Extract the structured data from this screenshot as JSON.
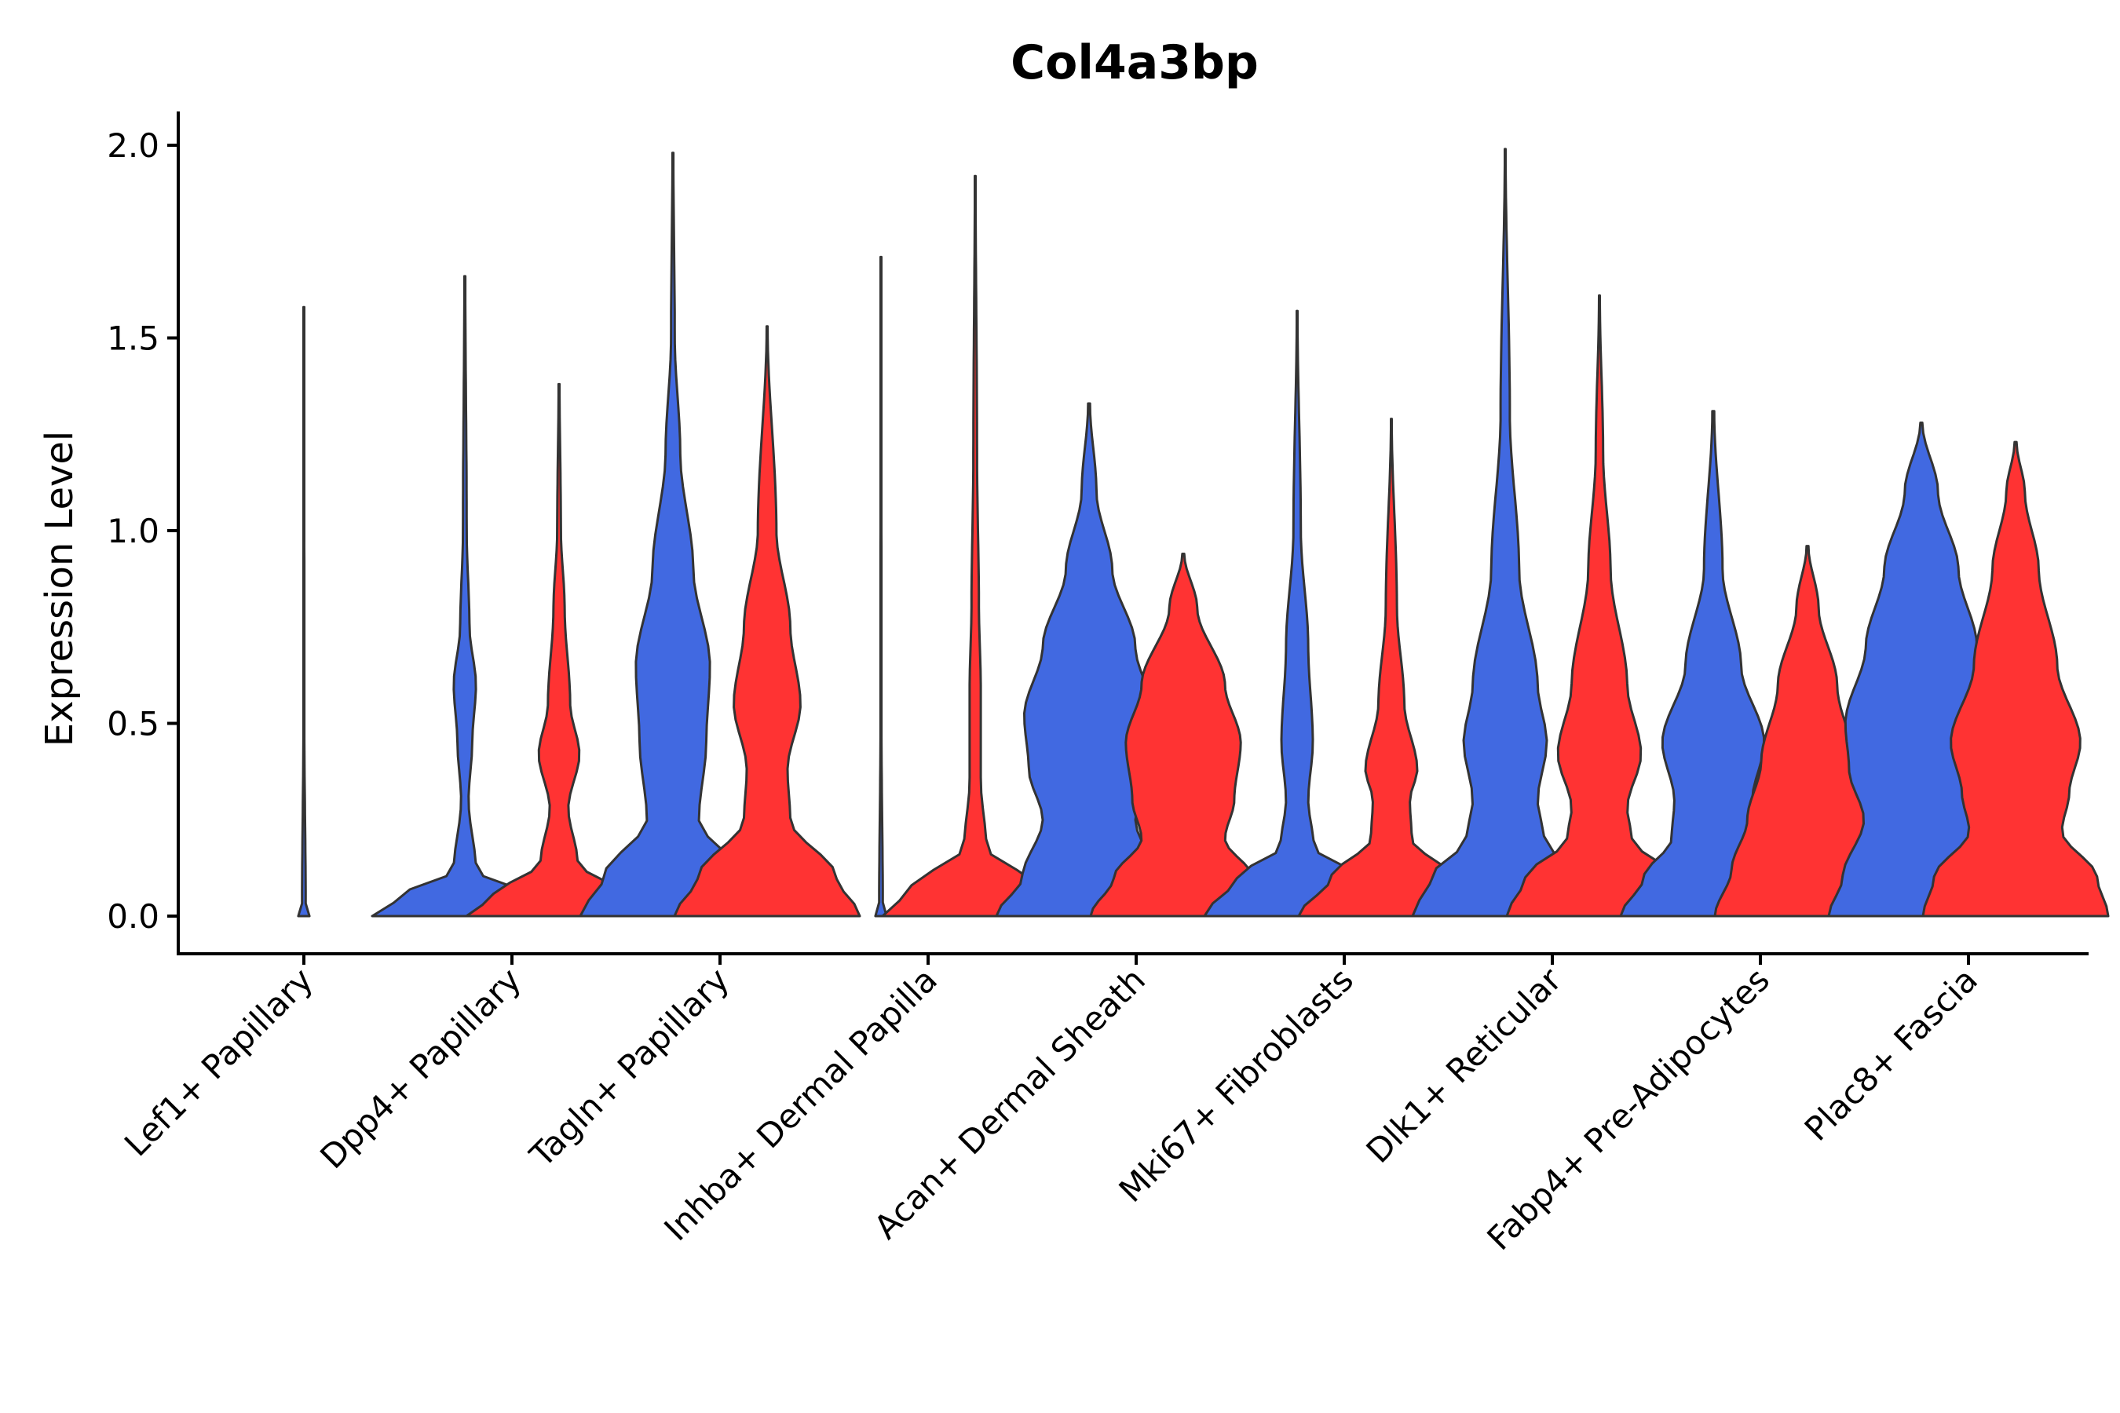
{
  "chart_data": {
    "type": "violin",
    "title": "Col4a3bp",
    "xlabel": "",
    "ylabel": "Expression Level",
    "ylim": [
      -0.1,
      2.1
    ],
    "yticks": [
      0.0,
      0.5,
      1.0,
      1.5,
      2.0
    ],
    "ytick_labels": [
      "0.0",
      "0.5",
      "1.0",
      "1.5",
      "2.0"
    ],
    "grid": false,
    "legend": "none",
    "series_colors": {
      "blue": "#4169e1",
      "red": "#ff3333"
    },
    "outline_color": "#333333",
    "categories": [
      {
        "label": "Lef1+ Papillary",
        "violins": [
          {
            "group": "blue",
            "color": "#4169e1",
            "max": 1.58,
            "shape": [
              [
                0,
                0.06
              ],
              [
                0.002,
                1.0
              ],
              [
                0.01,
                0.02
              ],
              [
                0.5,
                0.005
              ],
              [
                1.58,
                0.004
              ]
            ]
          }
        ]
      },
      {
        "label": "Dpp4+ Papillary",
        "violins": [
          {
            "group": "blue",
            "color": "#4169e1",
            "max": 1.66,
            "shape": [
              [
                0,
                1.0
              ],
              [
                0.05,
                0.7
              ],
              [
                0.12,
                0.12
              ],
              [
                0.3,
                0.04
              ],
              [
                0.45,
                0.08
              ],
              [
                0.6,
                0.12
              ],
              [
                0.75,
                0.05
              ],
              [
                1.0,
                0.02
              ],
              [
                1.66,
                0.005
              ]
            ]
          },
          {
            "group": "red",
            "color": "#ff3333",
            "max": 1.38,
            "shape": [
              [
                0,
                1.0
              ],
              [
                0.05,
                0.72
              ],
              [
                0.14,
                0.2
              ],
              [
                0.28,
                0.1
              ],
              [
                0.42,
                0.22
              ],
              [
                0.55,
                0.12
              ],
              [
                0.8,
                0.06
              ],
              [
                1.0,
                0.02
              ],
              [
                1.38,
                0.005
              ]
            ]
          }
        ]
      },
      {
        "label": "Tagln+ Papillary",
        "violins": [
          {
            "group": "blue",
            "color": "#4169e1",
            "max": 1.98,
            "shape": [
              [
                0,
                1.0
              ],
              [
                0.1,
                0.75
              ],
              [
                0.25,
                0.28
              ],
              [
                0.45,
                0.36
              ],
              [
                0.65,
                0.4
              ],
              [
                0.9,
                0.22
              ],
              [
                1.2,
                0.08
              ],
              [
                1.5,
                0.02
              ],
              [
                1.98,
                0.005
              ]
            ]
          },
          {
            "group": "red",
            "color": "#ff3333",
            "max": 1.53,
            "shape": [
              [
                0,
                1.0
              ],
              [
                0.1,
                0.75
              ],
              [
                0.25,
                0.25
              ],
              [
                0.38,
                0.22
              ],
              [
                0.55,
                0.36
              ],
              [
                0.75,
                0.25
              ],
              [
                1.0,
                0.1
              ],
              [
                1.53,
                0.005
              ]
            ]
          }
        ]
      },
      {
        "label": "Inhba+ Dermal Papilla",
        "violins": [
          {
            "group": "blue",
            "color": "#4169e1",
            "max": 1.71,
            "shape": [
              [
                0,
                0.06
              ],
              [
                0.002,
                1.0
              ],
              [
                0.01,
                0.02
              ],
              [
                0.5,
                0.005
              ],
              [
                1.71,
                0.004
              ]
            ]
          },
          {
            "group": "red",
            "color": "#ff3333",
            "max": 1.92,
            "shape": [
              [
                0,
                1.0
              ],
              [
                0.07,
                0.7
              ],
              [
                0.18,
                0.12
              ],
              [
                0.35,
                0.06
              ],
              [
                0.6,
                0.06
              ],
              [
                0.8,
                0.04
              ],
              [
                1.2,
                0.02
              ],
              [
                1.92,
                0.004
              ]
            ]
          }
        ]
      },
      {
        "label": "Acan+ Dermal Sheath",
        "violins": [
          {
            "group": "blue",
            "color": "#4169e1",
            "max": 1.33,
            "shape": [
              [
                0,
                1.0
              ],
              [
                0.1,
                0.72
              ],
              [
                0.25,
                0.5
              ],
              [
                0.38,
                0.65
              ],
              [
                0.52,
                0.7
              ],
              [
                0.7,
                0.5
              ],
              [
                0.9,
                0.25
              ],
              [
                1.1,
                0.08
              ],
              [
                1.33,
                0.01
              ]
            ]
          },
          {
            "group": "red",
            "color": "#ff3333",
            "max": 0.94,
            "shape": [
              [
                0,
                1.0
              ],
              [
                0.1,
                0.75
              ],
              [
                0.2,
                0.45
              ],
              [
                0.3,
                0.55
              ],
              [
                0.45,
                0.62
              ],
              [
                0.6,
                0.45
              ],
              [
                0.8,
                0.15
              ],
              [
                0.94,
                0.01
              ]
            ]
          }
        ]
      },
      {
        "label": "Mki67+ Fibroblasts",
        "violins": [
          {
            "group": "blue",
            "color": "#4169e1",
            "max": 1.57,
            "shape": [
              [
                0,
                1.0
              ],
              [
                0.1,
                0.65
              ],
              [
                0.18,
                0.18
              ],
              [
                0.3,
                0.12
              ],
              [
                0.45,
                0.17
              ],
              [
                0.7,
                0.12
              ],
              [
                1.0,
                0.04
              ],
              [
                1.57,
                0.004
              ]
            ]
          },
          {
            "group": "red",
            "color": "#ff3333",
            "max": 1.29,
            "shape": [
              [
                0,
                1.0
              ],
              [
                0.1,
                0.65
              ],
              [
                0.2,
                0.22
              ],
              [
                0.3,
                0.2
              ],
              [
                0.38,
                0.28
              ],
              [
                0.55,
                0.14
              ],
              [
                0.8,
                0.06
              ],
              [
                1.29,
                0.004
              ]
            ]
          }
        ]
      },
      {
        "label": "Dlk1+ Reticular",
        "violins": [
          {
            "group": "blue",
            "color": "#4169e1",
            "max": 1.99,
            "shape": [
              [
                0,
                1.0
              ],
              [
                0.1,
                0.8
              ],
              [
                0.2,
                0.42
              ],
              [
                0.3,
                0.35
              ],
              [
                0.45,
                0.45
              ],
              [
                0.6,
                0.35
              ],
              [
                0.9,
                0.15
              ],
              [
                1.3,
                0.05
              ],
              [
                1.99,
                0.004
              ]
            ]
          },
          {
            "group": "red",
            "color": "#ff3333",
            "max": 1.61,
            "shape": [
              [
                0,
                1.0
              ],
              [
                0.1,
                0.8
              ],
              [
                0.2,
                0.35
              ],
              [
                0.28,
                0.3
              ],
              [
                0.42,
                0.45
              ],
              [
                0.6,
                0.3
              ],
              [
                0.9,
                0.12
              ],
              [
                1.2,
                0.04
              ],
              [
                1.61,
                0.004
              ]
            ]
          }
        ]
      },
      {
        "label": "Fabp4+ Pre-Adipocytes",
        "violins": [
          {
            "group": "blue",
            "color": "#4169e1",
            "max": 1.31,
            "shape": [
              [
                0,
                1.0
              ],
              [
                0.1,
                0.75
              ],
              [
                0.2,
                0.45
              ],
              [
                0.3,
                0.42
              ],
              [
                0.45,
                0.55
              ],
              [
                0.65,
                0.3
              ],
              [
                0.9,
                0.1
              ],
              [
                1.31,
                0.01
              ]
            ]
          },
          {
            "group": "red",
            "color": "#ff3333",
            "max": 0.96,
            "shape": [
              [
                0,
                1.0
              ],
              [
                0.12,
                0.82
              ],
              [
                0.25,
                0.65
              ],
              [
                0.4,
                0.5
              ],
              [
                0.6,
                0.32
              ],
              [
                0.8,
                0.12
              ],
              [
                0.96,
                0.01
              ]
            ]
          }
        ]
      },
      {
        "label": "Plac8+ Fascia",
        "violins": [
          {
            "group": "blue",
            "color": "#4169e1",
            "max": 1.28,
            "shape": [
              [
                0,
                1.0
              ],
              [
                0.1,
                0.85
              ],
              [
                0.25,
                0.62
              ],
              [
                0.38,
                0.78
              ],
              [
                0.5,
                0.82
              ],
              [
                0.7,
                0.6
              ],
              [
                0.9,
                0.4
              ],
              [
                1.1,
                0.18
              ],
              [
                1.28,
                0.01
              ]
            ]
          },
          {
            "group": "red",
            "color": "#ff3333",
            "max": 1.23,
            "shape": [
              [
                0,
                1.0
              ],
              [
                0.1,
                0.88
              ],
              [
                0.22,
                0.5
              ],
              [
                0.32,
                0.58
              ],
              [
                0.45,
                0.7
              ],
              [
                0.65,
                0.45
              ],
              [
                0.9,
                0.25
              ],
              [
                1.1,
                0.1
              ],
              [
                1.23,
                0.01
              ]
            ]
          }
        ]
      }
    ]
  }
}
